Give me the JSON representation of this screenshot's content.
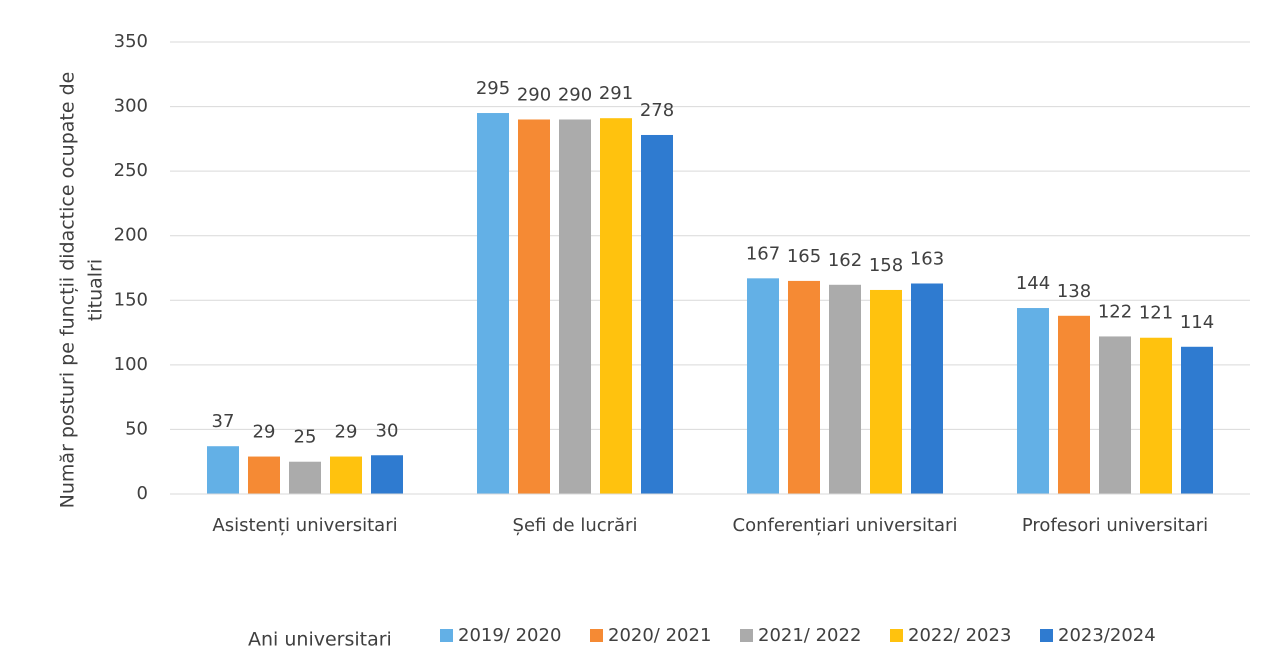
{
  "chart_data": {
    "type": "bar",
    "y_label": [
      "Număr posturi pe funcții didactice ocupate de",
      "titualri"
    ],
    "legend_title": "Ani universitari",
    "categories": [
      "Asistenți universitari",
      "Șefi de lucrări",
      "Conferențiari universitari",
      "Profesori universitari"
    ],
    "series": [
      {
        "name": "2019/ 2020",
        "color": "#63B0E6",
        "values": [
          37,
          295,
          167,
          144
        ]
      },
      {
        "name": "2020/ 2021",
        "color": "#F58A34",
        "values": [
          29,
          290,
          165,
          138
        ]
      },
      {
        "name": "2021/ 2022",
        "color": "#ABABAB",
        "values": [
          25,
          290,
          162,
          122
        ]
      },
      {
        "name": "2022/ 2023",
        "color": "#FFC20E",
        "values": [
          29,
          291,
          158,
          121
        ]
      },
      {
        "name": "2023/2024",
        "color": "#2F7BD0",
        "values": [
          30,
          278,
          163,
          114
        ]
      }
    ],
    "ylim": [
      0,
      350
    ],
    "yticks": [
      0,
      50,
      100,
      150,
      200,
      250,
      300,
      350
    ],
    "grid": true,
    "legend": "bottom"
  }
}
